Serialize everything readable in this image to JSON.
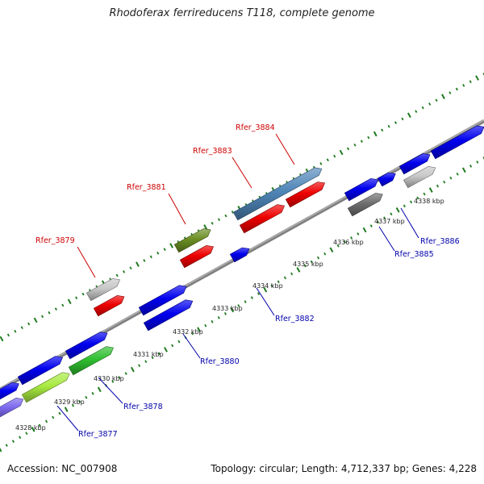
{
  "title": "Rhodoferax ferrireducens T118, complete genome",
  "footer": {
    "accession": "Accession: NC_007908",
    "summary": "Topology: circular; Length: 4,712,337 bp; Genes: 4,228"
  },
  "colors": {
    "backbone": "#808080",
    "dots": "#1e7a1e",
    "highlight_label": "#cc0000",
    "normal_label": "#0000aa",
    "blue": "#0000ee",
    "red": "#ee0000",
    "steelblue": "#4f86b8",
    "olive": "#6b8e23",
    "lightgray": "#c8c8c8",
    "darkgray": "#6e6e6e",
    "lightgreen": "#a8ea40",
    "green": "#2fbf2f",
    "slate": "#7b68ee"
  },
  "ticks": [
    "4328 kbp",
    "4329 kbp",
    "4330 kbp",
    "4331 kbp",
    "4332 kbp",
    "4333 kbp",
    "4334 kbp",
    "4335 kbp",
    "4336 kbp",
    "4337 kbp",
    "4338 kbp"
  ],
  "gene_labels": [
    {
      "text": "Rfer_3879",
      "kind": "highlight"
    },
    {
      "text": "Rfer_3881",
      "kind": "highlight"
    },
    {
      "text": "Rfer_3883",
      "kind": "highlight"
    },
    {
      "text": "Rfer_3884",
      "kind": "highlight"
    },
    {
      "text": "Rfer_3877",
      "kind": "normal"
    },
    {
      "text": "Rfer_3878",
      "kind": "normal"
    },
    {
      "text": "Rfer_3880",
      "kind": "normal"
    },
    {
      "text": "Rfer_3882",
      "kind": "normal"
    },
    {
      "text": "Rfer_3885",
      "kind": "normal"
    },
    {
      "text": "Rfer_3886",
      "kind": "normal"
    }
  ]
}
